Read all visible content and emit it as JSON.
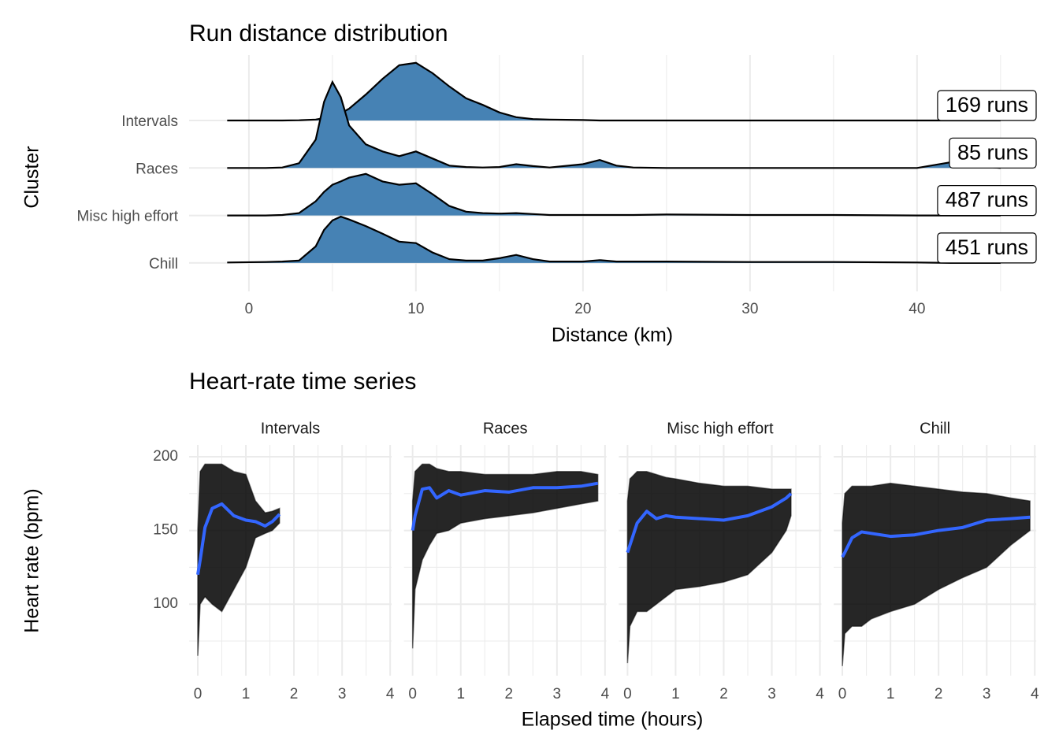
{
  "chart_data": [
    {
      "type": "ridgeline",
      "title": "Run distance distribution",
      "x_label": "Distance (km)",
      "y_label": "Cluster",
      "categories": [
        "Intervals",
        "Races",
        "Misc high effort",
        "Chill"
      ],
      "x": [
        -1.3,
        1,
        2,
        3,
        4,
        4.5,
        5,
        5.5,
        6,
        7,
        8,
        9,
        10,
        11,
        12,
        13,
        14,
        15,
        16,
        17,
        18,
        20,
        21,
        22,
        23,
        25,
        30,
        35,
        40,
        42,
        44,
        45
      ],
      "series": [
        {
          "name": "Intervals",
          "values": [
            0,
            0,
            0,
            0.005,
            0.02,
            0.05,
            0.1,
            0.15,
            0.25,
            0.55,
            0.88,
            1.17,
            1.22,
            1.0,
            0.72,
            0.47,
            0.33,
            0.17,
            0.07,
            0.03,
            0.02,
            0.01,
            0,
            0,
            0,
            0,
            0,
            0,
            0,
            0,
            0,
            0
          ]
        },
        {
          "name": "Races",
          "values": [
            0,
            0,
            0.01,
            0.1,
            0.6,
            1.4,
            1.82,
            1.5,
            0.9,
            0.5,
            0.35,
            0.25,
            0.35,
            0.2,
            0.05,
            0.02,
            0.01,
            0.02,
            0.08,
            0.04,
            0.01,
            0.08,
            0.17,
            0.05,
            0.01,
            0,
            0,
            0,
            0,
            0.12,
            0.03,
            0
          ]
        },
        {
          "name": "Misc high effort",
          "values": [
            0,
            0,
            0.01,
            0.05,
            0.3,
            0.5,
            0.65,
            0.72,
            0.8,
            0.88,
            0.72,
            0.65,
            0.68,
            0.45,
            0.2,
            0.08,
            0.05,
            0.04,
            0.05,
            0.03,
            0.01,
            0.01,
            0.01,
            0.01,
            0.01,
            0.02,
            0.01,
            0.01,
            0,
            0,
            0,
            0
          ]
        },
        {
          "name": "Chill",
          "values": [
            0.01,
            0.02,
            0.03,
            0.05,
            0.35,
            0.7,
            0.9,
            0.98,
            0.92,
            0.78,
            0.62,
            0.45,
            0.42,
            0.22,
            0.08,
            0.05,
            0.05,
            0.1,
            0.17,
            0.08,
            0.03,
            0.03,
            0.06,
            0.03,
            0.03,
            0.03,
            0.02,
            0.02,
            0.01,
            0,
            0,
            0
          ]
        }
      ],
      "counts": [
        169,
        85,
        487,
        451
      ],
      "value_labels": [
        "169 runs",
        "85 runs",
        "487 runs",
        "451 runs"
      ],
      "color": "#4682b4",
      "xlim": [
        -3.58,
        47.13
      ],
      "xticks": [
        0,
        10,
        20,
        30,
        40
      ],
      "grid": true
    },
    {
      "type": "line",
      "title": "Heart-rate time series",
      "x_label": "Elapsed time (hours)",
      "y_label": "Heart rate (bpm)",
      "color": "#3366ff",
      "trace_color": "#000000",
      "xlim": [
        -0.18,
        4.03
      ],
      "xticks": [
        0,
        1,
        2,
        3,
        4
      ],
      "ylim": [
        51.5,
        208
      ],
      "yticks": [
        100,
        150,
        200
      ],
      "grid": true,
      "facets": [
        {
          "name": "Intervals",
          "x": [
            0,
            0.05,
            0.15,
            0.3,
            0.5,
            0.75,
            1.0,
            1.2,
            1.4,
            1.55,
            1.7
          ],
          "smooth": [
            120,
            130,
            152,
            165,
            168,
            160,
            157,
            156,
            153,
            156,
            161
          ],
          "high": [
            150,
            190,
            195,
            195,
            195,
            190,
            188,
            170,
            162,
            163,
            165
          ],
          "low": [
            65,
            100,
            105,
            100,
            95,
            110,
            125,
            145,
            148,
            150,
            155
          ]
        },
        {
          "name": "Races",
          "x": [
            0,
            0.05,
            0.2,
            0.35,
            0.5,
            0.75,
            1,
            1.5,
            2,
            2.5,
            3,
            3.5,
            3.85
          ],
          "smooth": [
            150,
            160,
            178,
            179,
            172,
            177,
            174,
            177,
            176,
            179,
            179,
            180,
            182
          ],
          "high": [
            170,
            190,
            195,
            195,
            192,
            190,
            190,
            188,
            188,
            188,
            190,
            190,
            188
          ],
          "low": [
            70,
            110,
            130,
            140,
            148,
            150,
            155,
            158,
            160,
            162,
            165,
            168,
            170
          ]
        },
        {
          "name": "Misc high effort",
          "x": [
            0,
            0.05,
            0.2,
            0.4,
            0.6,
            0.8,
            1,
            1.5,
            2,
            2.5,
            3,
            3.3,
            3.4
          ],
          "smooth": [
            135,
            140,
            155,
            163,
            158,
            160,
            159,
            158,
            157,
            160,
            166,
            172,
            175
          ],
          "high": [
            170,
            185,
            190,
            190,
            188,
            186,
            185,
            182,
            180,
            180,
            178,
            178,
            178
          ],
          "low": [
            60,
            85,
            95,
            95,
            100,
            105,
            110,
            112,
            115,
            120,
            135,
            150,
            160
          ]
        },
        {
          "name": "Chill",
          "x": [
            0,
            0.05,
            0.2,
            0.4,
            0.6,
            1,
            1.5,
            2,
            2.5,
            3,
            3.5,
            3.9
          ],
          "smooth": [
            132,
            135,
            145,
            149,
            148,
            146,
            147,
            150,
            152,
            157,
            158,
            159
          ],
          "high": [
            155,
            175,
            180,
            180,
            180,
            182,
            180,
            178,
            176,
            175,
            172,
            170
          ],
          "low": [
            58,
            80,
            85,
            85,
            90,
            95,
            100,
            110,
            118,
            125,
            140,
            150
          ]
        }
      ]
    }
  ]
}
